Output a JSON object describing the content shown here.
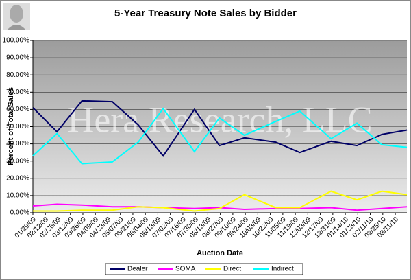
{
  "chart_data": {
    "type": "line",
    "title": "5-Year Treasury Note Sales by Bidder",
    "watermark": "Hera Research, LLC",
    "x_label": "Auction Date",
    "y_label": "Percent of Total Sales",
    "x": [
      "01/29/09",
      "02/25/09",
      "03/25/09",
      "04/28/09",
      "05/27/09",
      "06/24/09",
      "07/29/09",
      "08/26/09",
      "09/23/09",
      "10/28/09",
      "11/24/09",
      "12/29/09",
      "01/27/10",
      "02/24/10",
      "03/24/10"
    ],
    "xlim": [
      "01/29/09",
      "03/24/10"
    ],
    "xticks": [
      "01/29/09",
      "02/12/09",
      "02/26/09",
      "03/12/09",
      "03/26/09",
      "04/09/09",
      "04/23/09",
      "05/07/09",
      "05/21/09",
      "06/04/09",
      "06/18/09",
      "07/02/09",
      "07/16/09",
      "07/30/09",
      "08/13/09",
      "08/27/09",
      "09/10/09",
      "09/24/09",
      "10/08/09",
      "10/22/09",
      "11/05/09",
      "11/19/09",
      "12/03/09",
      "12/17/09",
      "12/31/09",
      "01/14/10",
      "01/28/10",
      "02/11/10",
      "02/25/10",
      "03/11/10"
    ],
    "ylim": [
      0,
      100
    ],
    "yticks": [
      {
        "value": 0,
        "label": "0.00%"
      },
      {
        "value": 10,
        "label": "10.00%"
      },
      {
        "value": 20,
        "label": "20.00%"
      },
      {
        "value": 30,
        "label": "30.00%"
      },
      {
        "value": 40,
        "label": "40.00%"
      },
      {
        "value": 50,
        "label": "50.00%"
      },
      {
        "value": 60,
        "label": "60.00%"
      },
      {
        "value": 70,
        "label": "70.00%"
      },
      {
        "value": 80,
        "label": "80.00%"
      },
      {
        "value": 90,
        "label": "90.00%"
      },
      {
        "value": 100,
        "label": "100.00%"
      }
    ],
    "grid": true,
    "legend": "bottom",
    "series": [
      {
        "name": "Dealer",
        "color": "#000066",
        "values": [
          61,
          47,
          65,
          64.5,
          51,
          33,
          60,
          39,
          43.5,
          41,
          35,
          41.5,
          39,
          45.5,
          48
        ]
      },
      {
        "name": "SOMA",
        "color": "#ff00ff",
        "values": [
          4,
          5,
          4.5,
          3.5,
          3.5,
          3,
          2.5,
          3,
          2,
          2.5,
          2.5,
          3,
          1.5,
          2.5,
          3.5
        ]
      },
      {
        "name": "Direct",
        "color": "#ffff00",
        "values": [
          1,
          1,
          1.5,
          1.5,
          3.5,
          3,
          1,
          2.5,
          10.5,
          3,
          3,
          12.5,
          7.5,
          12.5,
          10.5
        ]
      },
      {
        "name": "Indirect",
        "color": "#00ffff",
        "values": [
          33,
          46,
          28.5,
          29.5,
          41,
          60.5,
          35.5,
          55,
          45,
          53,
          59,
          43,
          52,
          39.5,
          38
        ]
      }
    ]
  }
}
